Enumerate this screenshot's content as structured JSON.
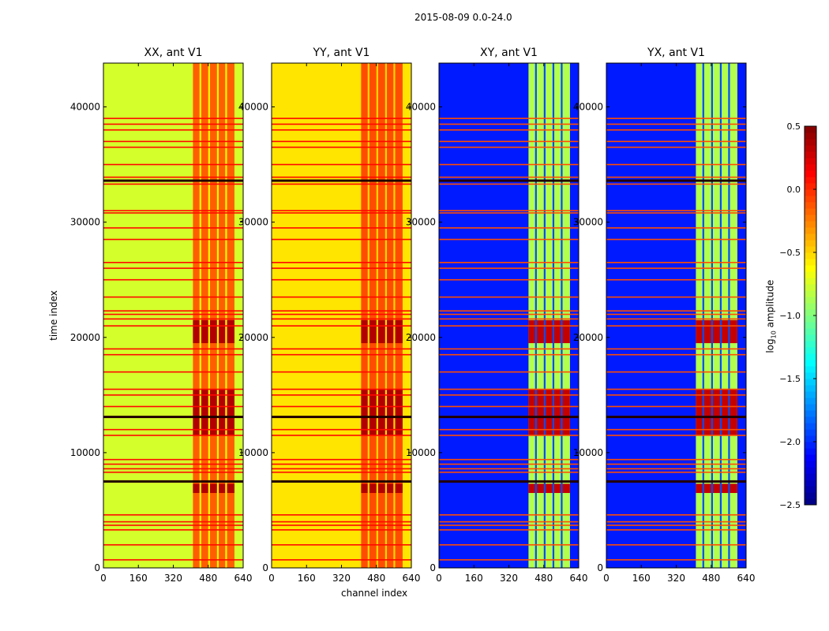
{
  "chart_data": {
    "type": "heatmap",
    "title": "2015-08-09 0.0-24.0",
    "xlabel": "channel index",
    "ylabel": "time index",
    "xlim": [
      0,
      640
    ],
    "ylim": [
      0,
      43800
    ],
    "xticks": [
      "0",
      "160",
      "320",
      "480",
      "640"
    ],
    "xtick_values": [
      0,
      160,
      320,
      480,
      640
    ],
    "yticks": [
      "0",
      "10000",
      "20000",
      "30000",
      "40000"
    ],
    "ytick_values": [
      0,
      10000,
      20000,
      30000,
      40000
    ],
    "colorbar": {
      "label": "log10 amplitude",
      "label_main": "log",
      "label_sub": "10",
      "label_rest": " amplitude",
      "range": [
        -2.5,
        0.5
      ],
      "ticks": [
        "0.5",
        "0.0",
        "−0.5",
        "−1.0",
        "−1.5",
        "−2.0",
        "−2.5"
      ],
      "tick_values": [
        0.5,
        0.0,
        -0.5,
        -1.0,
        -1.5,
        -2.0,
        -2.5
      ],
      "colormap": "jet"
    },
    "panels": [
      {
        "title": "XX, ant V1",
        "base": -0.75,
        "band": -0.15,
        "band_hot": 0.35,
        "gap": -0.6,
        "line_value": 0.1
      },
      {
        "title": "YY, ant V1",
        "base": -0.55,
        "band": -0.1,
        "band_hot": 0.35,
        "gap": -0.5,
        "line_value": 0.1
      },
      {
        "title": "XY, ant V1",
        "base": -2.05,
        "band": -0.85,
        "band_hot": 0.3,
        "gap": -1.9,
        "line_value": -0.1
      },
      {
        "title": "YX, ant V1",
        "base": -2.05,
        "band": -0.85,
        "band_hot": 0.3,
        "gap": -1.9,
        "line_value": -0.1
      }
    ],
    "band_channels": [
      410,
      600
    ],
    "gap_channels": [
      [
        440,
        448
      ],
      [
        480,
        488
      ],
      [
        520,
        528
      ],
      [
        558,
        566
      ]
    ],
    "hot_time_ranges": [
      [
        11500,
        15500
      ],
      [
        19500,
        21500
      ],
      [
        6500,
        7300
      ]
    ],
    "flagged_rows": [
      700,
      2000,
      3300,
      3700,
      4000,
      4600,
      7500,
      8300,
      8600,
      9000,
      9400,
      11500,
      12000,
      13100,
      14000,
      15000,
      15500,
      17000,
      18500,
      19000,
      21000,
      21600,
      22000,
      22300,
      23500,
      25000,
      26000,
      26500,
      28500,
      29500,
      30800,
      31000,
      33300,
      33600,
      33900,
      35000,
      36500,
      37000,
      38000,
      38500,
      39000
    ],
    "dark_rows": [
      7500,
      13100,
      33600
    ]
  }
}
